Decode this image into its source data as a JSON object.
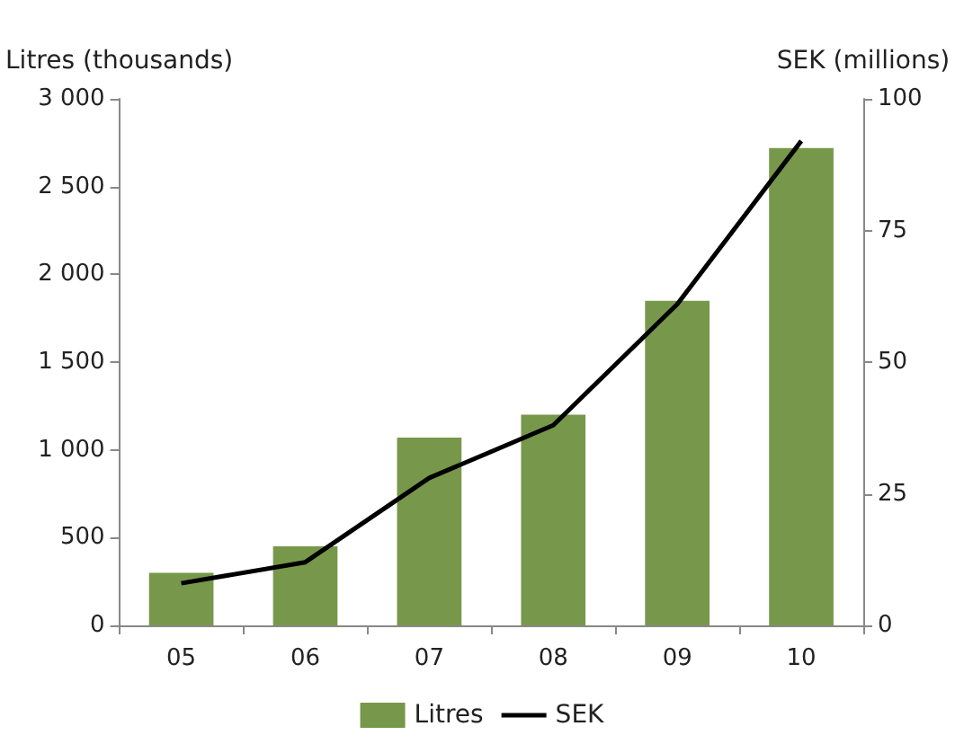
{
  "chart_data": {
    "type": "bar",
    "ylabel": "Litres (thousands)",
    "y2label": "SEK (millions)",
    "categories": [
      "05",
      "06",
      "07",
      "08",
      "09",
      "10"
    ],
    "series": [
      {
        "name": "Litres",
        "color": "#77984a",
        "values": [
          300,
          450,
          1070,
          1200,
          1850,
          2720
        ]
      },
      {
        "name": "SEK",
        "type": "line",
        "axis": "y2",
        "color": "#000000",
        "values": [
          8,
          12,
          28,
          38,
          61,
          92
        ]
      }
    ],
    "ylim": [
      0,
      3000
    ],
    "yticks": [
      0,
      500,
      {
        "value": 1000,
        "label": "1 000"
      },
      {
        "value": 1500,
        "label": "1 500"
      },
      {
        "value": 2000,
        "label": "2 000"
      },
      {
        "value": 2500,
        "label": "2 500"
      },
      {
        "value": 3000,
        "label": "3 000"
      }
    ],
    "y2lim": [
      0,
      100
    ],
    "y2ticks": [
      0,
      25,
      50,
      75,
      100
    ],
    "grid": false,
    "legend": "bottom",
    "marker": "none",
    "line_style": "solid"
  }
}
